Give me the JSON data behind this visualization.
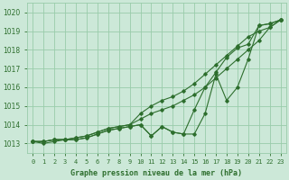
{
  "title": "Graphe pression niveau de la mer (hPa)",
  "x_labels": [
    "0",
    "1",
    "2",
    "3",
    "4",
    "5",
    "6",
    "7",
    "8",
    "9",
    "10",
    "11",
    "12",
    "13",
    "14",
    "15",
    "16",
    "17",
    "18",
    "19",
    "20",
    "21",
    "22",
    "23"
  ],
  "ylim": [
    1012.5,
    1020.5
  ],
  "xlim": [
    -0.5,
    23.5
  ],
  "yticks": [
    1013,
    1014,
    1015,
    1016,
    1017,
    1018,
    1019,
    1020
  ],
  "bg_color": "#cce8d8",
  "grid_color": "#99ccaa",
  "line_color": "#2d6e2d",
  "series": [
    [
      1013.1,
      1013.1,
      1013.2,
      1013.2,
      1013.2,
      1013.3,
      1013.5,
      1013.7,
      1013.8,
      1013.9,
      1014.0,
      1013.4,
      1013.9,
      1013.6,
      1013.5,
      1013.5,
      1014.6,
      1016.7,
      1015.3,
      1016.0,
      1017.5,
      1019.3,
      1019.4,
      1019.6
    ],
    [
      1013.1,
      1013.0,
      1013.1,
      1013.2,
      1013.2,
      1013.3,
      1013.5,
      1013.7,
      1013.8,
      1013.9,
      1014.0,
      1013.4,
      1013.9,
      1013.6,
      1013.5,
      1014.8,
      1016.0,
      1016.8,
      1017.6,
      1018.1,
      1018.3,
      1019.3,
      1019.4,
      1019.6
    ],
    [
      1013.1,
      1013.1,
      1013.2,
      1013.2,
      1013.3,
      1013.4,
      1013.6,
      1013.8,
      1013.9,
      1014.0,
      1014.3,
      1014.6,
      1014.8,
      1015.0,
      1015.3,
      1015.6,
      1016.0,
      1016.5,
      1017.0,
      1017.5,
      1018.0,
      1018.5,
      1019.2,
      1019.6
    ],
    [
      1013.1,
      1013.1,
      1013.2,
      1013.2,
      1013.3,
      1013.4,
      1013.6,
      1013.8,
      1013.9,
      1014.0,
      1014.6,
      1015.0,
      1015.3,
      1015.5,
      1015.8,
      1016.2,
      1016.7,
      1017.2,
      1017.7,
      1018.2,
      1018.7,
      1019.0,
      1019.2,
      1019.6
    ]
  ]
}
